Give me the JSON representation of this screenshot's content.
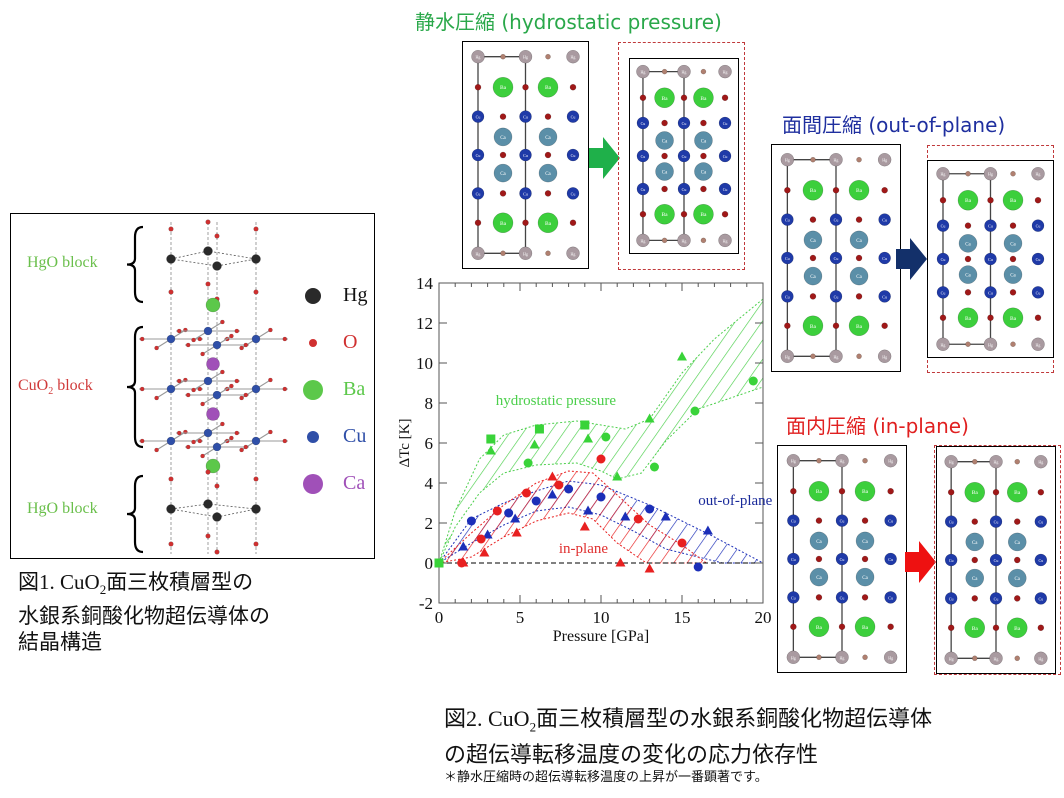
{
  "figure1": {
    "labels": {
      "hgo_top": "HgO block",
      "cuo2_block": "CuO",
      "cuo2_sub": "2",
      "cuo2_suffix": " block",
      "hgo_bottom": "HgO block"
    },
    "legend": [
      {
        "element": "Hg",
        "color": "#2a2a2a"
      },
      {
        "element": "O",
        "color": "#d03030"
      },
      {
        "element": "Ba",
        "color": "#5cc84a"
      },
      {
        "element": "Cu",
        "color": "#2f4fa8"
      },
      {
        "element": "Ca",
        "color": "#a050b8"
      }
    ],
    "caption_line1_prefix": "図1. CuO",
    "caption_line1_sub": "2",
    "caption_line1_suffix": "面三枚積層型の",
    "caption_line2": "水銀系銅酸化物超伝導体の",
    "caption_line3": "結晶構造"
  },
  "panels": {
    "hydrostatic": {
      "title": "静水圧縮 (hydrostatic pressure)",
      "color": "#2aa84a",
      "arrow_color": "#1fb04a"
    },
    "out_of_plane": {
      "title": "面間圧縮 (out-of-plane)",
      "color": "#1f2f9f",
      "arrow_color": "#13306a"
    },
    "in_plane": {
      "title": "面内圧縮 (in-plane)",
      "color": "#e02020",
      "arrow_color": "#ee1111"
    }
  },
  "atom_labels": {
    "hg": "Hg",
    "o": "O",
    "ba": "Ba",
    "cu": "Cu",
    "ca": "Ca"
  },
  "figure2": {
    "caption_line1_prefix": "図2. CuO",
    "caption_line1_sub": "2",
    "caption_line1_suffix": "面三枚積層型の水銀系銅酸化物超伝導体",
    "caption_line2": "の超伝導転移温度の変化の応力依存性",
    "note": "＊静水圧縮時の超伝導転移温度の上昇が一番顕著です。"
  },
  "chart_data": {
    "type": "scatter",
    "title": "",
    "xlabel": "Pressure [GPa]",
    "ylabel": "ΔTc [K]",
    "xlim": [
      0,
      20
    ],
    "ylim": [
      -2,
      14
    ],
    "xticks": [
      0,
      5,
      10,
      15,
      20
    ],
    "yticks": [
      -2,
      0,
      2,
      4,
      6,
      8,
      10,
      12,
      14
    ],
    "grid": false,
    "annotations": [
      {
        "text": "hydrostatic pressure",
        "x": 3.5,
        "y": 7.9,
        "color": "#4ccf4c"
      },
      {
        "text": "out-of-plane",
        "x": 16.0,
        "y": 2.9,
        "color": "#1a2a9a"
      },
      {
        "text": "in-plane",
        "x": 7.4,
        "y": 0.5,
        "color": "#e03030"
      }
    ],
    "series": [
      {
        "name": "hydrostatic pressure",
        "color": "#39d339",
        "marker": "square",
        "points": [
          [
            0,
            0
          ],
          [
            3.2,
            6.2
          ],
          [
            6.2,
            6.7
          ],
          [
            9.0,
            6.9
          ]
        ]
      },
      {
        "name": "hydrostatic pressure",
        "color": "#39d339",
        "marker": "triangle",
        "points": [
          [
            3.2,
            5.6
          ],
          [
            5.9,
            5.9
          ],
          [
            9.2,
            6.2
          ],
          [
            11.0,
            4.3
          ],
          [
            13.0,
            7.2
          ],
          [
            15.0,
            10.3
          ]
        ]
      },
      {
        "name": "hydrostatic pressure",
        "color": "#39d339",
        "marker": "circle",
        "points": [
          [
            5.5,
            5.0
          ],
          [
            10.3,
            6.3
          ],
          [
            13.3,
            4.8
          ],
          [
            15.8,
            7.6
          ],
          [
            19.4,
            9.1
          ]
        ]
      },
      {
        "name": "out-of-plane",
        "color": "#1c2fb8",
        "marker": "circle",
        "points": [
          [
            2.0,
            2.1
          ],
          [
            4.3,
            2.5
          ],
          [
            6.0,
            3.1
          ],
          [
            8.0,
            3.7
          ],
          [
            10.0,
            3.3
          ],
          [
            13.0,
            2.7
          ],
          [
            16.0,
            -0.2
          ]
        ]
      },
      {
        "name": "out-of-plane",
        "color": "#1c2fb8",
        "marker": "triangle",
        "points": [
          [
            1.5,
            0.8
          ],
          [
            3.0,
            1.4
          ],
          [
            4.7,
            2.2
          ],
          [
            7.0,
            3.4
          ],
          [
            9.2,
            2.6
          ],
          [
            11.5,
            2.3
          ],
          [
            14.0,
            2.3
          ],
          [
            16.6,
            1.6
          ]
        ]
      },
      {
        "name": "in-plane",
        "color": "#e82020",
        "marker": "circle",
        "points": [
          [
            1.4,
            0
          ],
          [
            2.6,
            1.2
          ],
          [
            3.6,
            2.6
          ],
          [
            5.4,
            3.5
          ],
          [
            7.4,
            3.9
          ],
          [
            10.0,
            5.2
          ],
          [
            12.3,
            2.2
          ],
          [
            15.0,
            1.0
          ]
        ]
      },
      {
        "name": "in-plane",
        "color": "#e82020",
        "marker": "triangle",
        "points": [
          [
            1.5,
            0
          ],
          [
            2.8,
            0.5
          ],
          [
            4.8,
            1.5
          ],
          [
            7.0,
            4.3
          ],
          [
            9.0,
            1.8
          ],
          [
            11.2,
            0
          ],
          [
            13.0,
            -0.3
          ]
        ]
      }
    ],
    "bands": [
      {
        "name": "hydrostatic pressure",
        "color": "#4ccf4c",
        "upper": [
          [
            0,
            0
          ],
          [
            1,
            2.6
          ],
          [
            2.5,
            5.2
          ],
          [
            4,
            6.4
          ],
          [
            6,
            6.9
          ],
          [
            8.5,
            7.1
          ],
          [
            10,
            6.9
          ],
          [
            11.5,
            6.7
          ],
          [
            13,
            7.2
          ],
          [
            15,
            9.5
          ],
          [
            17,
            11.2
          ],
          [
            20,
            13.2
          ]
        ],
        "lower": [
          [
            0,
            0
          ],
          [
            1,
            1.8
          ],
          [
            2.5,
            3.5
          ],
          [
            4,
            4.5
          ],
          [
            6,
            4.9
          ],
          [
            8.5,
            5.0
          ],
          [
            10,
            4.6
          ],
          [
            11,
            4.2
          ],
          [
            12.5,
            4.5
          ],
          [
            14,
            6.1
          ],
          [
            16,
            7.7
          ],
          [
            20,
            8.8
          ]
        ]
      },
      {
        "name": "out-of-plane",
        "color": "#1c2fb8",
        "upper": [
          [
            0,
            0
          ],
          [
            2,
            2.2
          ],
          [
            4,
            3.0
          ],
          [
            6,
            3.6
          ],
          [
            8,
            4.1
          ],
          [
            10,
            3.9
          ],
          [
            13,
            2.9
          ],
          [
            15,
            2.1
          ],
          [
            17,
            1.3
          ],
          [
            20,
            0
          ]
        ],
        "lower": [
          [
            0,
            0
          ],
          [
            2,
            1.0
          ],
          [
            4,
            1.9
          ],
          [
            6,
            2.6
          ],
          [
            8,
            2.8
          ],
          [
            10,
            2.4
          ],
          [
            12,
            1.6
          ],
          [
            14,
            0.7
          ],
          [
            17.5,
            0
          ]
        ]
      },
      {
        "name": "in-plane",
        "color": "#e82020",
        "upper": [
          [
            0,
            0
          ],
          [
            2,
            1.5
          ],
          [
            4,
            2.9
          ],
          [
            6,
            4.0
          ],
          [
            8,
            4.6
          ],
          [
            9.5,
            4.5
          ],
          [
            11,
            3.4
          ],
          [
            13,
            1.9
          ],
          [
            15,
            0.9
          ],
          [
            16.5,
            0
          ]
        ],
        "lower": [
          [
            0,
            0
          ],
          [
            2,
            0.3
          ],
          [
            4,
            1.3
          ],
          [
            6,
            2.1
          ],
          [
            8,
            2.5
          ],
          [
            9.5,
            2.2
          ],
          [
            11,
            1.0
          ],
          [
            12.8,
            0
          ]
        ]
      }
    ]
  }
}
